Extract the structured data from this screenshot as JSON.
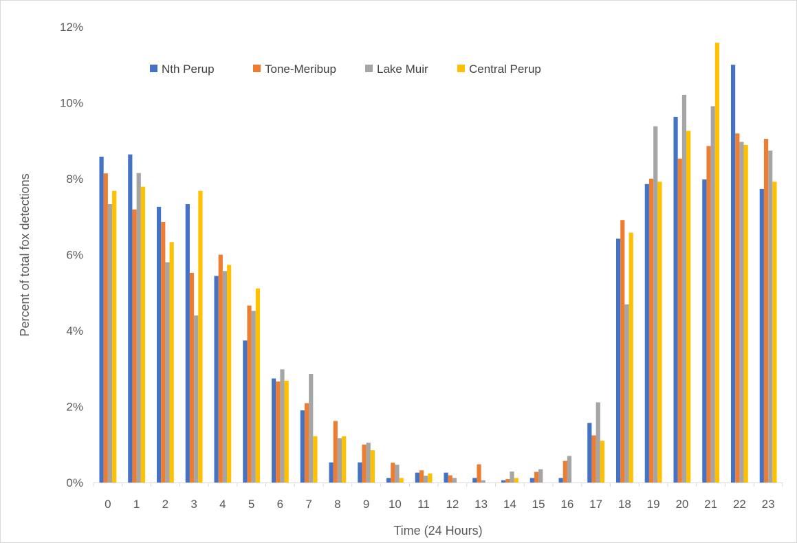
{
  "chart_data": {
    "type": "bar",
    "title": "",
    "xlabel": "Time (24 Hours)",
    "ylabel": "Percent of total fox detections",
    "ylim": [
      0,
      12
    ],
    "y_ticks": [
      "0%",
      "2%",
      "4%",
      "6%",
      "8%",
      "10%",
      "12%"
    ],
    "y_tick_values": [
      0,
      2,
      4,
      6,
      8,
      10,
      12
    ],
    "grid": false,
    "legend_position": "top",
    "categories": [
      "0",
      "1",
      "2",
      "3",
      "4",
      "5",
      "6",
      "7",
      "8",
      "9",
      "10",
      "11",
      "12",
      "13",
      "14",
      "15",
      "16",
      "17",
      "18",
      "19",
      "20",
      "21",
      "22",
      "23"
    ],
    "series": [
      {
        "name": "Nth Perup",
        "color": "#4472C4",
        "values": [
          8.58,
          8.64,
          7.26,
          7.33,
          5.44,
          3.74,
          2.74,
          1.9,
          0.53,
          0.53,
          0.12,
          0.26,
          0.26,
          0.12,
          0.06,
          0.12,
          0.12,
          1.57,
          6.42,
          7.86,
          9.63,
          7.98,
          11.0,
          7.73
        ]
      },
      {
        "name": "Tone-Meribup",
        "color": "#ED7D31",
        "values": [
          8.14,
          7.19,
          6.86,
          5.52,
          6.0,
          4.66,
          2.66,
          2.09,
          1.62,
          1.0,
          0.52,
          0.32,
          0.19,
          0.48,
          0.09,
          0.28,
          0.57,
          1.24,
          6.91,
          8.0,
          8.53,
          8.86,
          9.19,
          9.05
        ]
      },
      {
        "name": "Lake Muir",
        "color": "#A5A5A5",
        "values": [
          7.33,
          8.15,
          5.8,
          4.4,
          5.57,
          4.52,
          2.98,
          2.86,
          1.17,
          1.05,
          0.47,
          0.18,
          0.12,
          0.06,
          0.29,
          0.35,
          0.7,
          2.11,
          4.69,
          9.38,
          10.21,
          9.91,
          8.97,
          8.74
        ]
      },
      {
        "name": "Central Perup",
        "color": "#FFC000",
        "values": [
          7.68,
          7.79,
          6.33,
          7.68,
          5.73,
          5.11,
          2.68,
          1.22,
          1.22,
          0.85,
          0.12,
          0.24,
          0.0,
          0.0,
          0.12,
          0.0,
          0.0,
          1.1,
          6.58,
          7.92,
          9.26,
          11.58,
          8.89,
          7.92
        ]
      }
    ]
  }
}
